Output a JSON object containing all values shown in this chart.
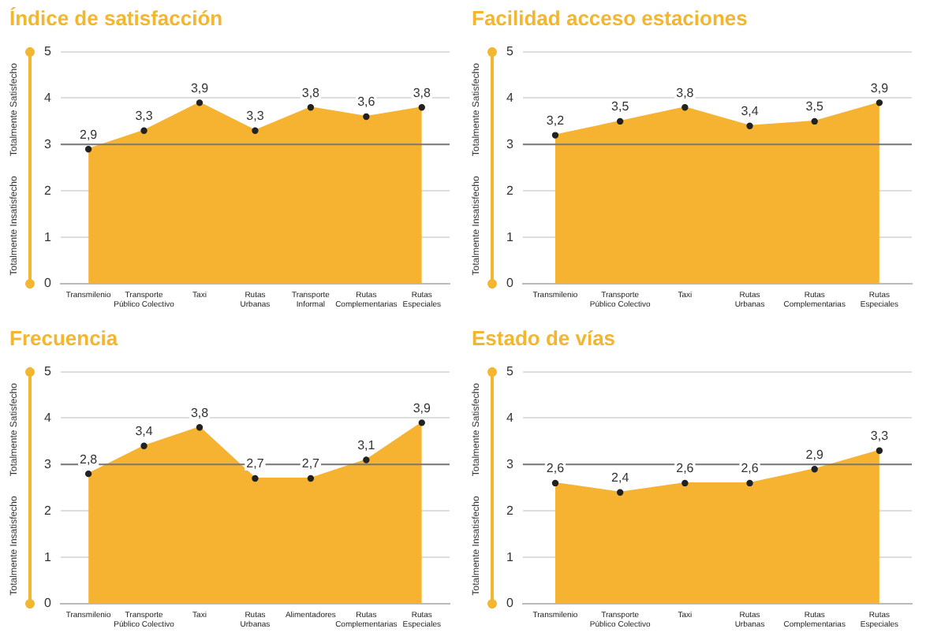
{
  "chart_data": [
    {
      "type": "area",
      "title": "Índice de satisfacción",
      "categories": [
        "Transmilenio",
        "Transporte Público Colectivo",
        "Taxi",
        "Rutas Urbanas",
        "Transporte Informal",
        "Rutas Complementarias",
        "Rutas Especiales"
      ],
      "series": [
        {
          "color": "#f6b332",
          "values": [
            2.9,
            3.3,
            3.9,
            3.3,
            3.8,
            3.6,
            3.8
          ],
          "value_labels": [
            "2,9",
            "3,3",
            "3,9",
            "3,3",
            "3,8",
            "3,6",
            "3,8"
          ]
        }
      ],
      "ylim": [
        0,
        5
      ],
      "yticks": [
        0,
        1,
        2,
        3,
        4,
        5
      ],
      "grid": "y",
      "marker": "circle",
      "legend": false,
      "annotations": [
        "Totalmente Insatisfecho",
        "Totalmente Satisfecho"
      ],
      "ref_lines": [
        {
          "axis": "y",
          "value": 3,
          "color": "#777777"
        }
      ]
    },
    {
      "type": "area",
      "title": "Facilidad acceso estaciones",
      "categories": [
        "Transmilenio",
        "Transporte Público Colectivo",
        "Taxi",
        "Rutas Urbanas",
        "Rutas Complementarias",
        "Rutas Especiales"
      ],
      "series": [
        {
          "color": "#f6b332",
          "values": [
            3.2,
            3.5,
            3.8,
            3.4,
            3.5,
            3.9
          ],
          "value_labels": [
            "3,2",
            "3,5",
            "3,8",
            "3,4",
            "3,5",
            "3,9"
          ]
        }
      ],
      "ylim": [
        0,
        5
      ],
      "yticks": [
        0,
        1,
        2,
        3,
        4,
        5
      ],
      "grid": "y",
      "marker": "circle",
      "legend": false,
      "annotations": [
        "Totalmente Insatisfecho",
        "Totalmente Satisfecho"
      ],
      "ref_lines": [
        {
          "axis": "y",
          "value": 3,
          "color": "#777777"
        }
      ]
    },
    {
      "type": "area",
      "title": "Frecuencia",
      "categories": [
        "Transmilenio",
        "Transporte Público Colectivo",
        "Taxi",
        "Rutas Urbanas",
        "Alimentadores",
        "Rutas Complementarias",
        "Rutas Especiales"
      ],
      "series": [
        {
          "color": "#f6b332",
          "values": [
            2.8,
            3.4,
            3.8,
            2.7,
            2.7,
            3.1,
            3.9
          ],
          "value_labels": [
            "2,8",
            "3,4",
            "3,8",
            "2,7",
            "2,7",
            "3,1",
            "3,9"
          ]
        }
      ],
      "ylim": [
        0,
        5
      ],
      "yticks": [
        0,
        1,
        2,
        3,
        4,
        5
      ],
      "grid": "y",
      "marker": "circle",
      "legend": false,
      "annotations": [
        "Totalmente Insatisfecho",
        "Totalmente Satisfecho"
      ],
      "ref_lines": [
        {
          "axis": "y",
          "value": 3,
          "color": "#777777"
        }
      ]
    },
    {
      "type": "area",
      "title": "Estado de vías",
      "categories": [
        "Transmilenio",
        "Transporte Público Colectivo",
        "Taxi",
        "Rutas Urbanas",
        "Rutas Complementarias",
        "Rutas Especiales"
      ],
      "series": [
        {
          "color": "#f6b332",
          "values": [
            2.6,
            2.4,
            2.6,
            2.6,
            2.9,
            3.3
          ],
          "value_labels": [
            "2,6",
            "2,4",
            "2,6",
            "2,6",
            "2,9",
            "3,3"
          ]
        }
      ],
      "ylim": [
        0,
        5
      ],
      "yticks": [
        0,
        1,
        2,
        3,
        4,
        5
      ],
      "grid": "y",
      "marker": "circle",
      "legend": false,
      "annotations": [
        "Totalmente Insatisfecho",
        "Totalmente Satisfecho"
      ],
      "ref_lines": [
        {
          "axis": "y",
          "value": 3,
          "color": "#777777"
        }
      ]
    }
  ]
}
